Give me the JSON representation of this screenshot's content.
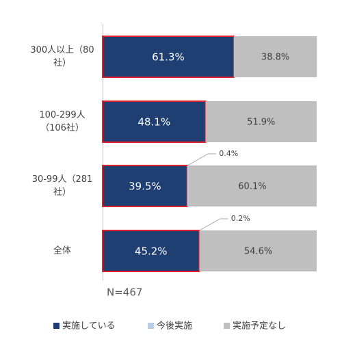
{
  "chart_data": {
    "type": "stacked_bar_horizontal",
    "categories": [
      "300人以上（80社）",
      "100-299人（106社）",
      "30-99人（281社）",
      "全体"
    ],
    "series": [
      {
        "name": "実施している",
        "color": "#1f3f73",
        "border_color": "#e0202a",
        "values": [
          61.3,
          48.1,
          39.5,
          45.2
        ],
        "value_labels": [
          "61.3%",
          "48.1%",
          "39.5%",
          "45.2%"
        ]
      },
      {
        "name": "今後実施",
        "color": "#b8cce4",
        "values": [
          0,
          0,
          0.4,
          0.2
        ],
        "value_labels": [
          null,
          null,
          "0.4%",
          "0.2%"
        ]
      },
      {
        "name": "実施予定なし",
        "color": "#bfbfbf",
        "values": [
          38.8,
          51.9,
          60.1,
          54.6
        ],
        "value_labels": [
          "38.8%",
          "51.9%",
          "60.1%",
          "54.6%"
        ]
      }
    ],
    "xlim": [
      0,
      100
    ],
    "annotation": "N=467"
  }
}
